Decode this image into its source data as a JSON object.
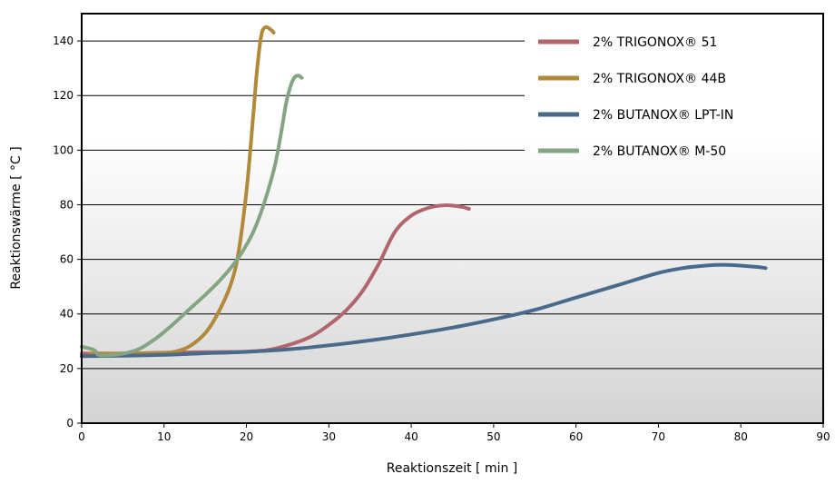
{
  "chart_data": {
    "type": "line",
    "xlabel": "Reaktionszeit [ min ]",
    "ylabel": "Reaktionswärme [ °C ]",
    "xlim": [
      0,
      90
    ],
    "ylim": [
      0,
      150
    ],
    "x_ticks": [
      0,
      10,
      20,
      30,
      40,
      50,
      60,
      70,
      80,
      90
    ],
    "y_ticks": [
      0,
      20,
      40,
      60,
      80,
      100,
      120,
      140
    ],
    "grid": "horizontal",
    "legend_position": "top-right",
    "series": [
      {
        "name": "2% TRIGONOX® 51",
        "color": "#b0666c",
        "points": [
          [
            0,
            25.5
          ],
          [
            5,
            25.5
          ],
          [
            10,
            25.8
          ],
          [
            15,
            26
          ],
          [
            20,
            26.2
          ],
          [
            23,
            27
          ],
          [
            26,
            29.5
          ],
          [
            28,
            32
          ],
          [
            30,
            36
          ],
          [
            32,
            41
          ],
          [
            34,
            48
          ],
          [
            36,
            58
          ],
          [
            38,
            70
          ],
          [
            40,
            76
          ],
          [
            42,
            78.8
          ],
          [
            44,
            79.8
          ],
          [
            46,
            79.3
          ],
          [
            47,
            78.5
          ]
        ]
      },
      {
        "name": "2% TRIGONOX® 44B",
        "color": "#b08a3a",
        "points": [
          [
            1,
            25.5
          ],
          [
            3,
            25.5
          ],
          [
            6,
            25.5
          ],
          [
            9,
            25.7
          ],
          [
            11,
            26
          ],
          [
            13,
            28
          ],
          [
            15,
            33
          ],
          [
            16.5,
            40
          ],
          [
            18,
            50
          ],
          [
            19,
            62
          ],
          [
            20,
            85
          ],
          [
            20.8,
            112
          ],
          [
            21.3,
            130
          ],
          [
            21.8,
            142
          ],
          [
            22.3,
            145
          ],
          [
            23,
            144
          ],
          [
            23.3,
            143
          ]
        ]
      },
      {
        "name": "2% BUTANOX® LPT-IN",
        "color": "#4a6a8c",
        "points": [
          [
            0,
            24.5
          ],
          [
            5,
            24.7
          ],
          [
            10,
            25
          ],
          [
            15,
            25.6
          ],
          [
            20,
            26.1
          ],
          [
            25,
            27
          ],
          [
            30,
            28.5
          ],
          [
            35,
            30.3
          ],
          [
            40,
            32.5
          ],
          [
            45,
            35
          ],
          [
            50,
            38
          ],
          [
            55,
            41.5
          ],
          [
            60,
            46
          ],
          [
            65,
            50.5
          ],
          [
            70,
            55
          ],
          [
            73,
            56.8
          ],
          [
            76,
            57.8
          ],
          [
            78,
            58
          ],
          [
            80,
            57.7
          ],
          [
            82,
            57.2
          ],
          [
            83,
            56.8
          ]
        ]
      },
      {
        "name": "2% BUTANOX® M-50",
        "color": "#84a484",
        "points": [
          [
            0,
            28
          ],
          [
            1.5,
            26.8
          ],
          [
            2,
            25
          ],
          [
            3,
            24.8
          ],
          [
            5,
            25.4
          ],
          [
            7,
            27.2
          ],
          [
            9,
            31
          ],
          [
            11,
            36
          ],
          [
            13,
            41.5
          ],
          [
            15,
            47
          ],
          [
            17,
            53
          ],
          [
            19,
            60.5
          ],
          [
            20.5,
            68
          ],
          [
            21.5,
            75
          ],
          [
            22.5,
            84
          ],
          [
            23.5,
            95
          ],
          [
            24.3,
            108
          ],
          [
            24.8,
            117
          ],
          [
            25.3,
            123
          ],
          [
            25.8,
            126.5
          ],
          [
            26.3,
            127.3
          ],
          [
            26.7,
            126.5
          ]
        ]
      }
    ]
  }
}
